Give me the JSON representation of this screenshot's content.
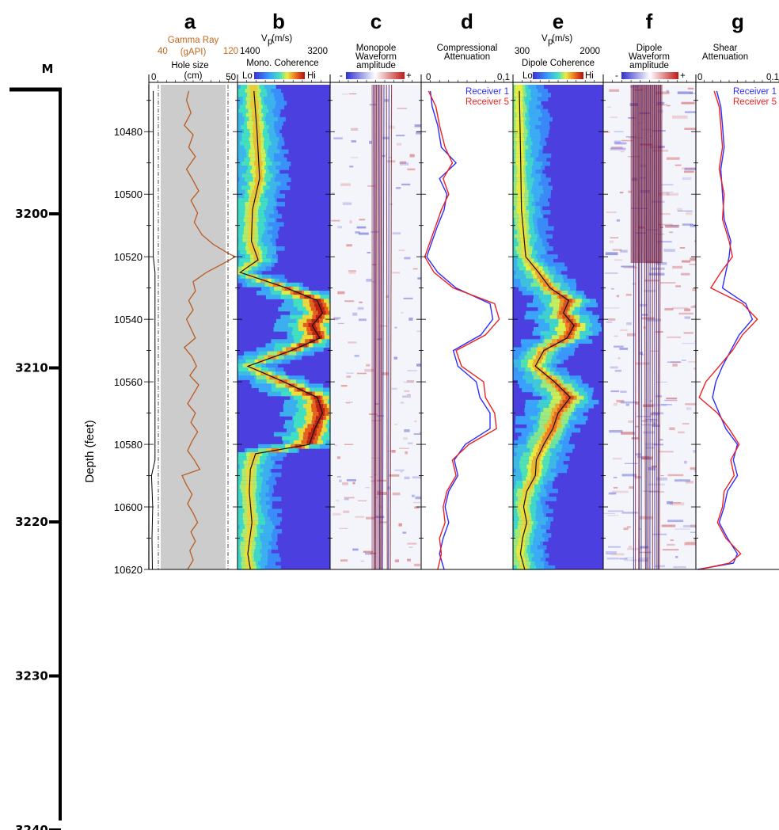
{
  "chart_data": {
    "type": "line",
    "title": "",
    "meter_axis": {
      "unit": "M",
      "ticks": [
        3200,
        3210,
        3220,
        3230,
        3240
      ]
    },
    "depth_axis": {
      "label": "Depth (feet)",
      "range": [
        10465,
        10620
      ],
      "ticks": [
        10480,
        10500,
        10520,
        10540,
        10560,
        10580,
        10600,
        10620
      ]
    },
    "panels": [
      {
        "letter": "a",
        "gamma_label": "Gamma Ray",
        "gamma_unit": "(gAPI)",
        "gamma_min": "40",
        "gamma_max": "120",
        "hole_label": "Hole size",
        "hole_unit": "(cm)",
        "hole_min": "0",
        "hole_max": "50",
        "gamma_ray": {
          "depth": [
            10467,
            10470,
            10474,
            10478,
            10481,
            10485,
            10488,
            10492,
            10495,
            10499,
            10502,
            10506,
            10509,
            10513,
            10516,
            10519,
            10520,
            10522,
            10525,
            10528,
            10531,
            10534,
            10537,
            10540,
            10543,
            10546,
            10549,
            10552,
            10555,
            10558,
            10561,
            10564,
            10567,
            10570,
            10573,
            10576,
            10579,
            10582,
            10585,
            10588,
            10590,
            10593,
            10596,
            10599,
            10602,
            10605,
            10608,
            10611,
            10614,
            10617,
            10620
          ],
          "value": [
            76,
            74,
            78,
            72,
            80,
            76,
            82,
            74,
            79,
            85,
            78,
            84,
            81,
            88,
            98,
            112,
            118,
            108,
            92,
            80,
            82,
            76,
            80,
            74,
            78,
            82,
            72,
            79,
            83,
            77,
            85,
            80,
            75,
            82,
            78,
            84,
            79,
            75,
            81,
            86,
            70,
            74,
            79,
            75,
            80,
            84,
            78,
            82,
            77,
            80,
            75
          ]
        },
        "hole_size": {
          "depth": [
            10467,
            10520,
            10525,
            10585,
            10590,
            10600,
            10610,
            10620
          ],
          "value": [
            2.5,
            2.5,
            3.5,
            3.5,
            1.5,
            2.2,
            1.8,
            2.0
          ]
        }
      },
      {
        "letter": "b",
        "vp_label": "V",
        "vp_sub": "p",
        "vp_unit": "(m/s)",
        "vp_min": "1400",
        "vp_max": "3200",
        "coh_label": "Mono. Coherence",
        "lo": "Lo",
        "hi": "Hi",
        "vp": {
          "depth": [
            10467,
            10480,
            10495,
            10505,
            10515,
            10521,
            10525,
            10530,
            10534,
            10538,
            10542,
            10546,
            10550,
            10555,
            10560,
            10565,
            10570,
            10575,
            10580,
            10583,
            10588,
            10595,
            10605,
            10615,
            10620
          ],
          "value": [
            1720,
            1780,
            1830,
            1690,
            1670,
            1800,
            1450,
            2350,
            2950,
            3050,
            2850,
            3000,
            2450,
            1600,
            2300,
            2950,
            3050,
            2900,
            2800,
            1750,
            1650,
            1630,
            1680,
            1600,
            1650
          ]
        }
      },
      {
        "letter": "c",
        "label_1": "Monopole",
        "label_2": "Waveform",
        "label_3": "amplitude",
        "minus": "-",
        "plus": "+"
      },
      {
        "letter": "d",
        "label_1": "Compressional",
        "label_2": "Attenuation",
        "min": "0",
        "max": "0.1",
        "series": [
          {
            "name": "Receiver 1",
            "color": "#2d2dff",
            "depth": [
              10467,
              10472,
              10478,
              10485,
              10490,
              10495,
              10500,
              10505,
              10510,
              10515,
              10520,
              10525,
              10530,
              10535,
              10540,
              10545,
              10550,
              10555,
              10560,
              10565,
              10570,
              10575,
              10580,
              10585,
              10590,
              10595,
              10600,
              10605,
              10610,
              10615,
              10620
            ],
            "value": [
              0.01,
              0.012,
              0.018,
              0.022,
              0.038,
              0.02,
              0.028,
              0.025,
              0.018,
              0.012,
              0.006,
              0.018,
              0.038,
              0.075,
              0.078,
              0.065,
              0.035,
              0.04,
              0.06,
              0.064,
              0.075,
              0.075,
              0.048,
              0.036,
              0.04,
              0.03,
              0.026,
              0.03,
              0.024,
              0.02,
              0.025
            ]
          },
          {
            "name": "Receiver 5",
            "color": "#ee2020",
            "depth": [
              10467,
              10472,
              10478,
              10485,
              10490,
              10495,
              10500,
              10505,
              10510,
              10515,
              10520,
              10525,
              10530,
              10535,
              10540,
              10545,
              10550,
              10555,
              10560,
              10565,
              10570,
              10575,
              10580,
              10585,
              10590,
              10595,
              10600,
              10605,
              10610,
              10615,
              10620
            ],
            "value": [
              0.008,
              0.016,
              0.02,
              0.026,
              0.034,
              0.024,
              0.03,
              0.022,
              0.016,
              0.01,
              0.004,
              0.014,
              0.035,
              0.08,
              0.085,
              0.07,
              0.038,
              0.044,
              0.068,
              0.07,
              0.08,
              0.082,
              0.052,
              0.034,
              0.038,
              0.028,
              0.024,
              0.026,
              0.02,
              0.022,
              0.018
            ]
          }
        ]
      },
      {
        "letter": "e",
        "vp_label": "V",
        "vp_sub": "p",
        "vp_unit": "(m/s)",
        "vp_min": "300",
        "vp_max": "2000",
        "coh_label": "Dipole Coherence",
        "lo": "Lo",
        "hi": "Hi",
        "vp": {
          "depth": [
            10467,
            10485,
            10505,
            10520,
            10525,
            10530,
            10534,
            10538,
            10542,
            10546,
            10550,
            10555,
            10560,
            10565,
            10570,
            10575,
            10580,
            10585,
            10590,
            10595,
            10600,
            10605,
            10610,
            10615,
            10620
          ],
          "value": [
            420,
            440,
            460,
            540,
            780,
            1000,
            1350,
            1250,
            1450,
            1320,
            880,
            720,
            1080,
            1380,
            1150,
            1050,
            880,
            740,
            720,
            560,
            500,
            560,
            480,
            440,
            520
          ]
        }
      },
      {
        "letter": "f",
        "label_1": "Dipole",
        "label_2": "Waveform",
        "label_3": "amplitude",
        "minus": "-",
        "plus": "+"
      },
      {
        "letter": "g",
        "label_1": "Shear",
        "label_2": "Attenuation",
        "min": "0",
        "max": "0.1",
        "series": [
          {
            "name": "Receiver 1",
            "color": "#2d2dff",
            "depth": [
              10467,
              10472,
              10478,
              10485,
              10492,
              10500,
              10508,
              10515,
              10520,
              10525,
              10530,
              10535,
              10540,
              10545,
              10550,
              10555,
              10560,
              10565,
              10570,
              10575,
              10580,
              10585,
              10590,
              10595,
              10600,
              10605,
              10610,
              10615,
              10618,
              10620
            ],
            "value": [
              0.025,
              0.03,
              0.032,
              0.034,
              0.03,
              0.032,
              0.034,
              0.042,
              0.04,
              0.036,
              0.032,
              0.06,
              0.068,
              0.052,
              0.042,
              0.032,
              0.024,
              0.02,
              0.028,
              0.036,
              0.05,
              0.045,
              0.05,
              0.038,
              0.034,
              0.028,
              0.038,
              0.05,
              0.045,
              0.002
            ]
          },
          {
            "name": "Receiver 5",
            "color": "#ee2020",
            "depth": [
              10467,
              10472,
              10478,
              10485,
              10492,
              10500,
              10508,
              10515,
              10520,
              10525,
              10530,
              10535,
              10540,
              10545,
              10550,
              10555,
              10560,
              10565,
              10570,
              10575,
              10580,
              10585,
              10590,
              10595,
              10600,
              10605,
              10610,
              10615,
              10618,
              10620
            ],
            "value": [
              0.022,
              0.028,
              0.03,
              0.032,
              0.028,
              0.034,
              0.032,
              0.04,
              0.044,
              0.03,
              0.018,
              0.056,
              0.074,
              0.056,
              0.044,
              0.028,
              0.012,
              0.004,
              0.026,
              0.04,
              0.052,
              0.042,
              0.046,
              0.034,
              0.032,
              0.026,
              0.036,
              0.054,
              0.04,
              0.004
            ]
          }
        ]
      }
    ]
  }
}
